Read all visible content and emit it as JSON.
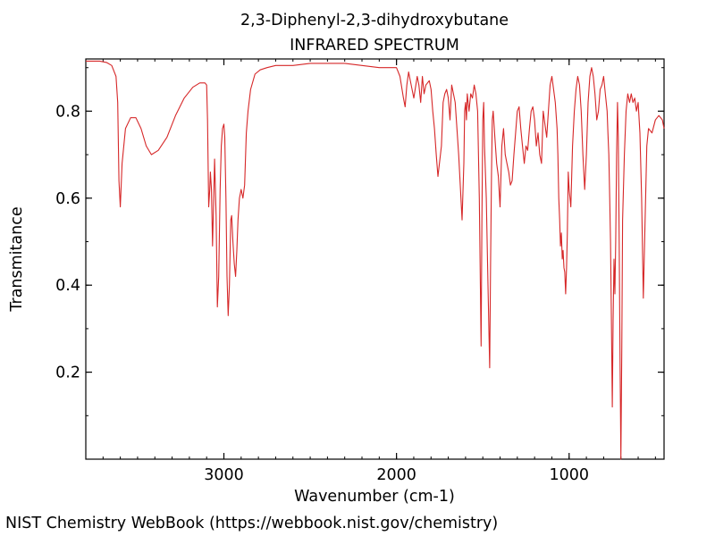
{
  "chart_data": {
    "type": "line",
    "title": "2,3-Diphenyl-2,3-dihydroxybutane",
    "subtitle": "INFRARED SPECTRUM",
    "xlabel": "Wavenumber (cm-1)",
    "ylabel": "Transmitance",
    "xlim": [
      3800,
      450
    ],
    "ylim": [
      0,
      0.92
    ],
    "x_reversed": true,
    "grid": false,
    "x_ticks": [
      3000,
      2000,
      1000
    ],
    "y_ticks": [
      0.2,
      0.4,
      0.6,
      0.8
    ],
    "line_color": "#d62728",
    "series": [
      {
        "x": [
          3800,
          3720,
          3680,
          3650,
          3625,
          3615,
          3608,
          3600,
          3590,
          3570,
          3540,
          3510,
          3480,
          3450,
          3420,
          3380,
          3330,
          3280,
          3230,
          3180,
          3140,
          3110,
          3100,
          3095,
          3088,
          3082,
          3078,
          3072,
          3066,
          3060,
          3054,
          3045,
          3038,
          3030,
          3022,
          3015,
          3008,
          3000,
          2995,
          2988,
          2982,
          2975,
          2968,
          2960,
          2955,
          2948,
          2940,
          2932,
          2925,
          2918,
          2910,
          2900,
          2890,
          2880,
          2870,
          2860,
          2845,
          2820,
          2790,
          2750,
          2700,
          2600,
          2500,
          2400,
          2300,
          2200,
          2100,
          2000,
          1980,
          1960,
          1950,
          1940,
          1930,
          1920,
          1900,
          1880,
          1870,
          1860,
          1850,
          1840,
          1830,
          1810,
          1800,
          1790,
          1780,
          1770,
          1760,
          1740,
          1730,
          1720,
          1710,
          1700,
          1690,
          1680,
          1660,
          1640,
          1620,
          1610,
          1605,
          1600,
          1595,
          1590,
          1580,
          1570,
          1560,
          1550,
          1540,
          1530,
          1520,
          1510,
          1505,
          1500,
          1495,
          1490,
          1480,
          1470,
          1460,
          1455,
          1450,
          1445,
          1440,
          1430,
          1420,
          1410,
          1400,
          1390,
          1380,
          1370,
          1360,
          1350,
          1340,
          1330,
          1320,
          1310,
          1300,
          1290,
          1280,
          1270,
          1260,
          1250,
          1240,
          1230,
          1220,
          1210,
          1200,
          1190,
          1180,
          1170,
          1160,
          1150,
          1140,
          1130,
          1120,
          1110,
          1100,
          1090,
          1080,
          1070,
          1065,
          1060,
          1055,
          1050,
          1045,
          1040,
          1035,
          1030,
          1025,
          1020,
          1015,
          1010,
          1005,
          1000,
          990,
          980,
          970,
          960,
          950,
          940,
          930,
          920,
          910,
          900,
          890,
          880,
          870,
          860,
          850,
          840,
          830,
          820,
          810,
          800,
          790,
          780,
          775,
          770,
          765,
          760,
          755,
          750,
          745,
          740,
          735,
          730,
          725,
          720,
          715,
          710,
          705,
          700,
          695,
          690,
          680,
          670,
          660,
          650,
          640,
          630,
          620,
          610,
          600,
          590,
          580,
          570,
          560,
          550,
          540,
          520,
          500,
          480,
          460,
          450
        ],
        "y": [
          0.915,
          0.915,
          0.912,
          0.905,
          0.88,
          0.82,
          0.64,
          0.58,
          0.68,
          0.76,
          0.785,
          0.785,
          0.76,
          0.72,
          0.7,
          0.71,
          0.74,
          0.79,
          0.83,
          0.855,
          0.865,
          0.865,
          0.86,
          0.78,
          0.58,
          0.62,
          0.66,
          0.62,
          0.49,
          0.58,
          0.69,
          0.56,
          0.35,
          0.42,
          0.62,
          0.72,
          0.76,
          0.77,
          0.74,
          0.6,
          0.42,
          0.33,
          0.4,
          0.55,
          0.56,
          0.5,
          0.45,
          0.42,
          0.48,
          0.55,
          0.6,
          0.62,
          0.6,
          0.63,
          0.75,
          0.8,
          0.85,
          0.885,
          0.895,
          0.9,
          0.905,
          0.905,
          0.91,
          0.91,
          0.91,
          0.905,
          0.9,
          0.9,
          0.88,
          0.83,
          0.81,
          0.86,
          0.89,
          0.87,
          0.83,
          0.88,
          0.86,
          0.82,
          0.88,
          0.84,
          0.86,
          0.87,
          0.85,
          0.8,
          0.76,
          0.7,
          0.65,
          0.72,
          0.82,
          0.84,
          0.85,
          0.83,
          0.78,
          0.86,
          0.82,
          0.7,
          0.55,
          0.68,
          0.8,
          0.82,
          0.78,
          0.84,
          0.8,
          0.84,
          0.83,
          0.86,
          0.84,
          0.8,
          0.6,
          0.26,
          0.55,
          0.78,
          0.82,
          0.72,
          0.6,
          0.4,
          0.21,
          0.45,
          0.65,
          0.78,
          0.8,
          0.74,
          0.68,
          0.65,
          0.58,
          0.72,
          0.76,
          0.7,
          0.68,
          0.66,
          0.63,
          0.64,
          0.7,
          0.75,
          0.8,
          0.81,
          0.76,
          0.72,
          0.68,
          0.72,
          0.71,
          0.76,
          0.8,
          0.81,
          0.78,
          0.72,
          0.75,
          0.7,
          0.68,
          0.8,
          0.77,
          0.74,
          0.8,
          0.86,
          0.88,
          0.85,
          0.82,
          0.76,
          0.7,
          0.6,
          0.55,
          0.49,
          0.52,
          0.46,
          0.48,
          0.44,
          0.43,
          0.38,
          0.44,
          0.52,
          0.66,
          0.62,
          0.58,
          0.72,
          0.8,
          0.85,
          0.88,
          0.86,
          0.8,
          0.7,
          0.62,
          0.7,
          0.82,
          0.88,
          0.9,
          0.88,
          0.84,
          0.78,
          0.8,
          0.85,
          0.86,
          0.88,
          0.84,
          0.8,
          0.75,
          0.7,
          0.6,
          0.5,
          0.32,
          0.12,
          0.32,
          0.46,
          0.38,
          0.5,
          0.7,
          0.82,
          0.74,
          0.5,
          0.22,
          0.0,
          0.25,
          0.55,
          0.7,
          0.8,
          0.84,
          0.82,
          0.84,
          0.82,
          0.83,
          0.8,
          0.82,
          0.75,
          0.6,
          0.37,
          0.55,
          0.72,
          0.76,
          0.75,
          0.78,
          0.79,
          0.78,
          0.76
        ]
      }
    ]
  },
  "footer": {
    "credit": "NIST Chemistry WebBook (https://webbook.nist.gov/chemistry)"
  }
}
